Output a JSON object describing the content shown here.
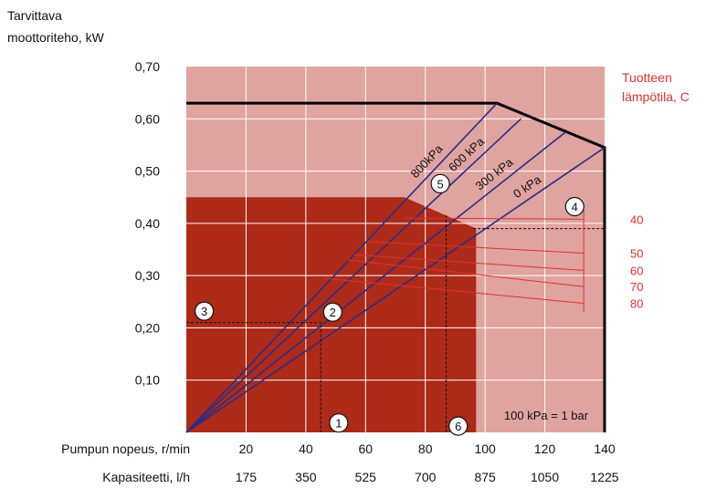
{
  "colors": {
    "light_region": "#dfa3a0",
    "dark_region": "#ad2a18",
    "curve": "#2a2d86",
    "red_label": "#e3312d",
    "grid": "#ffffff"
  },
  "chart_data": {
    "type": "line",
    "y_axis_title": [
      "Tarvittava",
      "moottoriteho, kW"
    ],
    "y_ticks": [
      {
        "value": 0.1,
        "label": "0,10"
      },
      {
        "value": 0.2,
        "label": "0,20"
      },
      {
        "value": 0.3,
        "label": "0,30"
      },
      {
        "value": 0.4,
        "label": "0,40"
      },
      {
        "value": 0.5,
        "label": "0,50"
      },
      {
        "value": 0.6,
        "label": "0,60"
      },
      {
        "value": 0.7,
        "label": "0,70"
      }
    ],
    "ylim": [
      0,
      0.7
    ],
    "xlim": [
      0,
      140
    ],
    "x_axis_speed": {
      "label": "Pumpun nopeus, r/min",
      "ticks": [
        {
          "value": 20,
          "label": "20"
        },
        {
          "value": 40,
          "label": "40"
        },
        {
          "value": 60,
          "label": "60"
        },
        {
          "value": 80,
          "label": "80"
        },
        {
          "value": 100,
          "label": "100"
        },
        {
          "value": 120,
          "label": "120"
        },
        {
          "value": 140,
          "label": "140"
        }
      ]
    },
    "x_axis_capacity": {
      "label": "Kapasiteetti, l/h",
      "ticks": [
        {
          "value": 20,
          "label": "175"
        },
        {
          "value": 40,
          "label": "350"
        },
        {
          "value": 60,
          "label": "525"
        },
        {
          "value": 80,
          "label": "700"
        },
        {
          "value": 100,
          "label": "875"
        },
        {
          "value": 120,
          "label": "1050"
        },
        {
          "value": 140,
          "label": "1225"
        }
      ]
    },
    "grid": true,
    "pressure_lines": [
      {
        "name": "0 kPa",
        "points": [
          [
            0,
            0
          ],
          [
            140,
            0.545
          ]
        ]
      },
      {
        "name": "300 kPa",
        "points": [
          [
            0,
            0
          ],
          [
            127,
            0.575
          ]
        ]
      },
      {
        "name": "600 kPa",
        "points": [
          [
            0,
            0
          ],
          [
            112,
            0.6
          ]
        ]
      },
      {
        "name": "800kPa",
        "points": [
          [
            0,
            0
          ],
          [
            104,
            0.63
          ]
        ]
      }
    ],
    "max_power_envelope": [
      [
        0,
        0.63
      ],
      [
        104,
        0.63
      ],
      [
        140,
        0.545
      ],
      [
        140,
        0
      ]
    ],
    "dark_region_outline": [
      [
        0,
        0
      ],
      [
        0,
        0.45
      ],
      [
        73,
        0.45
      ],
      [
        97,
        0.39
      ],
      [
        97,
        0
      ]
    ],
    "temperature_legend": {
      "title": [
        "Tuotteen",
        "lämpötila, C"
      ],
      "entries": [
        {
          "label": "40",
          "start": [
            73,
            0.41
          ],
          "end": [
            133,
            0.408
          ]
        },
        {
          "label": "50",
          "start": [
            61,
            0.365
          ],
          "end": [
            133,
            0.343
          ]
        },
        {
          "label": "60",
          "start": [
            56,
            0.34
          ],
          "end": [
            133,
            0.31
          ]
        },
        {
          "label": "70",
          "start": [
            54,
            0.33
          ],
          "end": [
            133,
            0.279
          ]
        },
        {
          "label": "80",
          "start": [
            46,
            0.295
          ],
          "end": [
            133,
            0.247
          ]
        }
      ]
    },
    "markers": [
      {
        "label": "1",
        "at": [
          51,
          0.018
        ]
      },
      {
        "label": "2",
        "at": [
          49,
          0.23
        ]
      },
      {
        "label": "3",
        "at": [
          6,
          0.232
        ]
      },
      {
        "label": "4",
        "at": [
          130,
          0.432
        ]
      },
      {
        "label": "5",
        "at": [
          85,
          0.476
        ]
      },
      {
        "label": "6",
        "at": [
          91,
          0.012
        ]
      }
    ],
    "guide_lines": [
      {
        "points": [
          [
            0,
            0.21
          ],
          [
            45,
            0.21
          ],
          [
            45,
            0
          ]
        ]
      },
      {
        "points": [
          [
            87,
            0
          ],
          [
            87,
            0.415
          ]
        ]
      },
      {
        "points": [
          [
            96,
            0.39
          ],
          [
            140,
            0.39
          ]
        ]
      }
    ],
    "annotation": "100 kPa = 1 bar"
  }
}
